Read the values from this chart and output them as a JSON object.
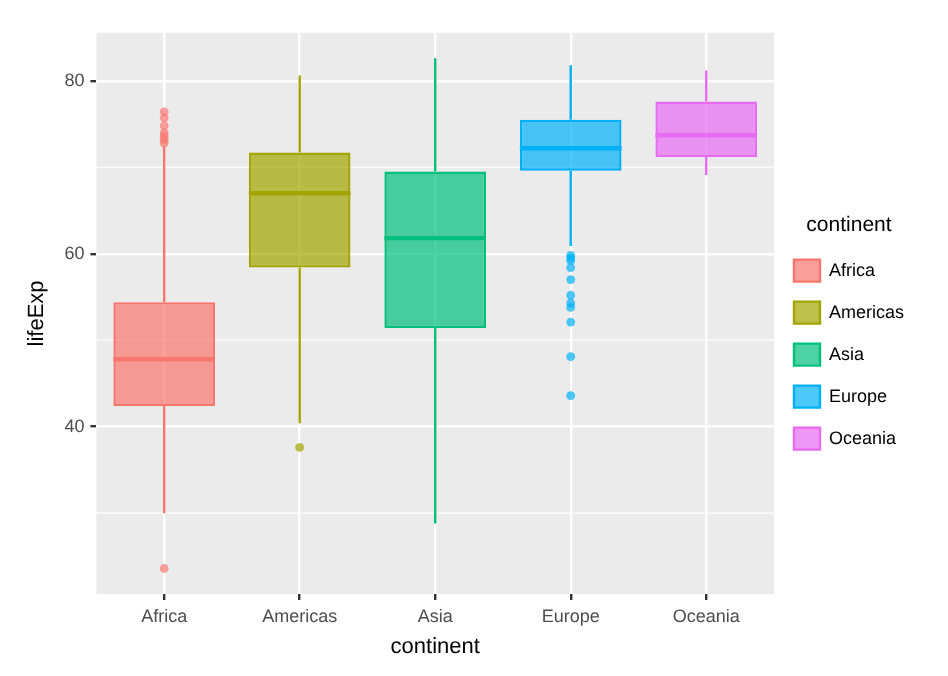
{
  "chart_data": {
    "type": "box",
    "categories": [
      "Africa",
      "Americas",
      "Asia",
      "Europe",
      "Oceania"
    ],
    "series": [
      {
        "name": "Africa",
        "color": "#f8766d",
        "boxes": [
          {
            "low": 30.0,
            "q1": 42.4,
            "median": 47.8,
            "q3": 54.4,
            "high": 72.4,
            "outliers": [
              76.4,
              75.7,
              74.8,
              74.0,
              73.6,
              73.2,
              72.8,
              23.6
            ]
          },
          null,
          null,
          null,
          null
        ]
      },
      {
        "name": "Americas",
        "color": "#a3a500",
        "boxes": [
          null,
          {
            "low": 40.4,
            "q1": 58.4,
            "median": 67.0,
            "q3": 71.7,
            "high": 80.6,
            "outliers": [
              37.6
            ]
          },
          null,
          null,
          null
        ]
      },
      {
        "name": "Asia",
        "color": "#00bf7d",
        "boxes": [
          null,
          null,
          {
            "low": 28.8,
            "q1": 51.4,
            "median": 61.8,
            "q3": 69.5,
            "high": 82.6
          },
          null,
          null
        ]
      },
      {
        "name": "Europe",
        "color": "#00b0f6",
        "boxes": [
          null,
          null,
          null,
          {
            "low": 60.9,
            "q1": 69.6,
            "median": 72.2,
            "q3": 75.5,
            "high": 81.8,
            "outliers": [
              59.8,
              59.5,
              59.2,
              58.4,
              57.0,
              55.2,
              54.3,
              53.8,
              52.1,
              48.1,
              43.6
            ]
          },
          null
        ]
      },
      {
        "name": "Oceania",
        "color": "#e76bf3",
        "boxes": [
          null,
          null,
          null,
          null,
          {
            "low": 69.1,
            "q1": 71.2,
            "median": 73.7,
            "q3": 77.6,
            "high": 81.2
          }
        ]
      }
    ],
    "xlabel": "continent",
    "ylabel": "lifeExp",
    "legend_title": "continent",
    "legend": "right",
    "ylim": [
      20.65,
      85.55
    ],
    "yticks": [
      40,
      60,
      80
    ],
    "grid": true
  }
}
